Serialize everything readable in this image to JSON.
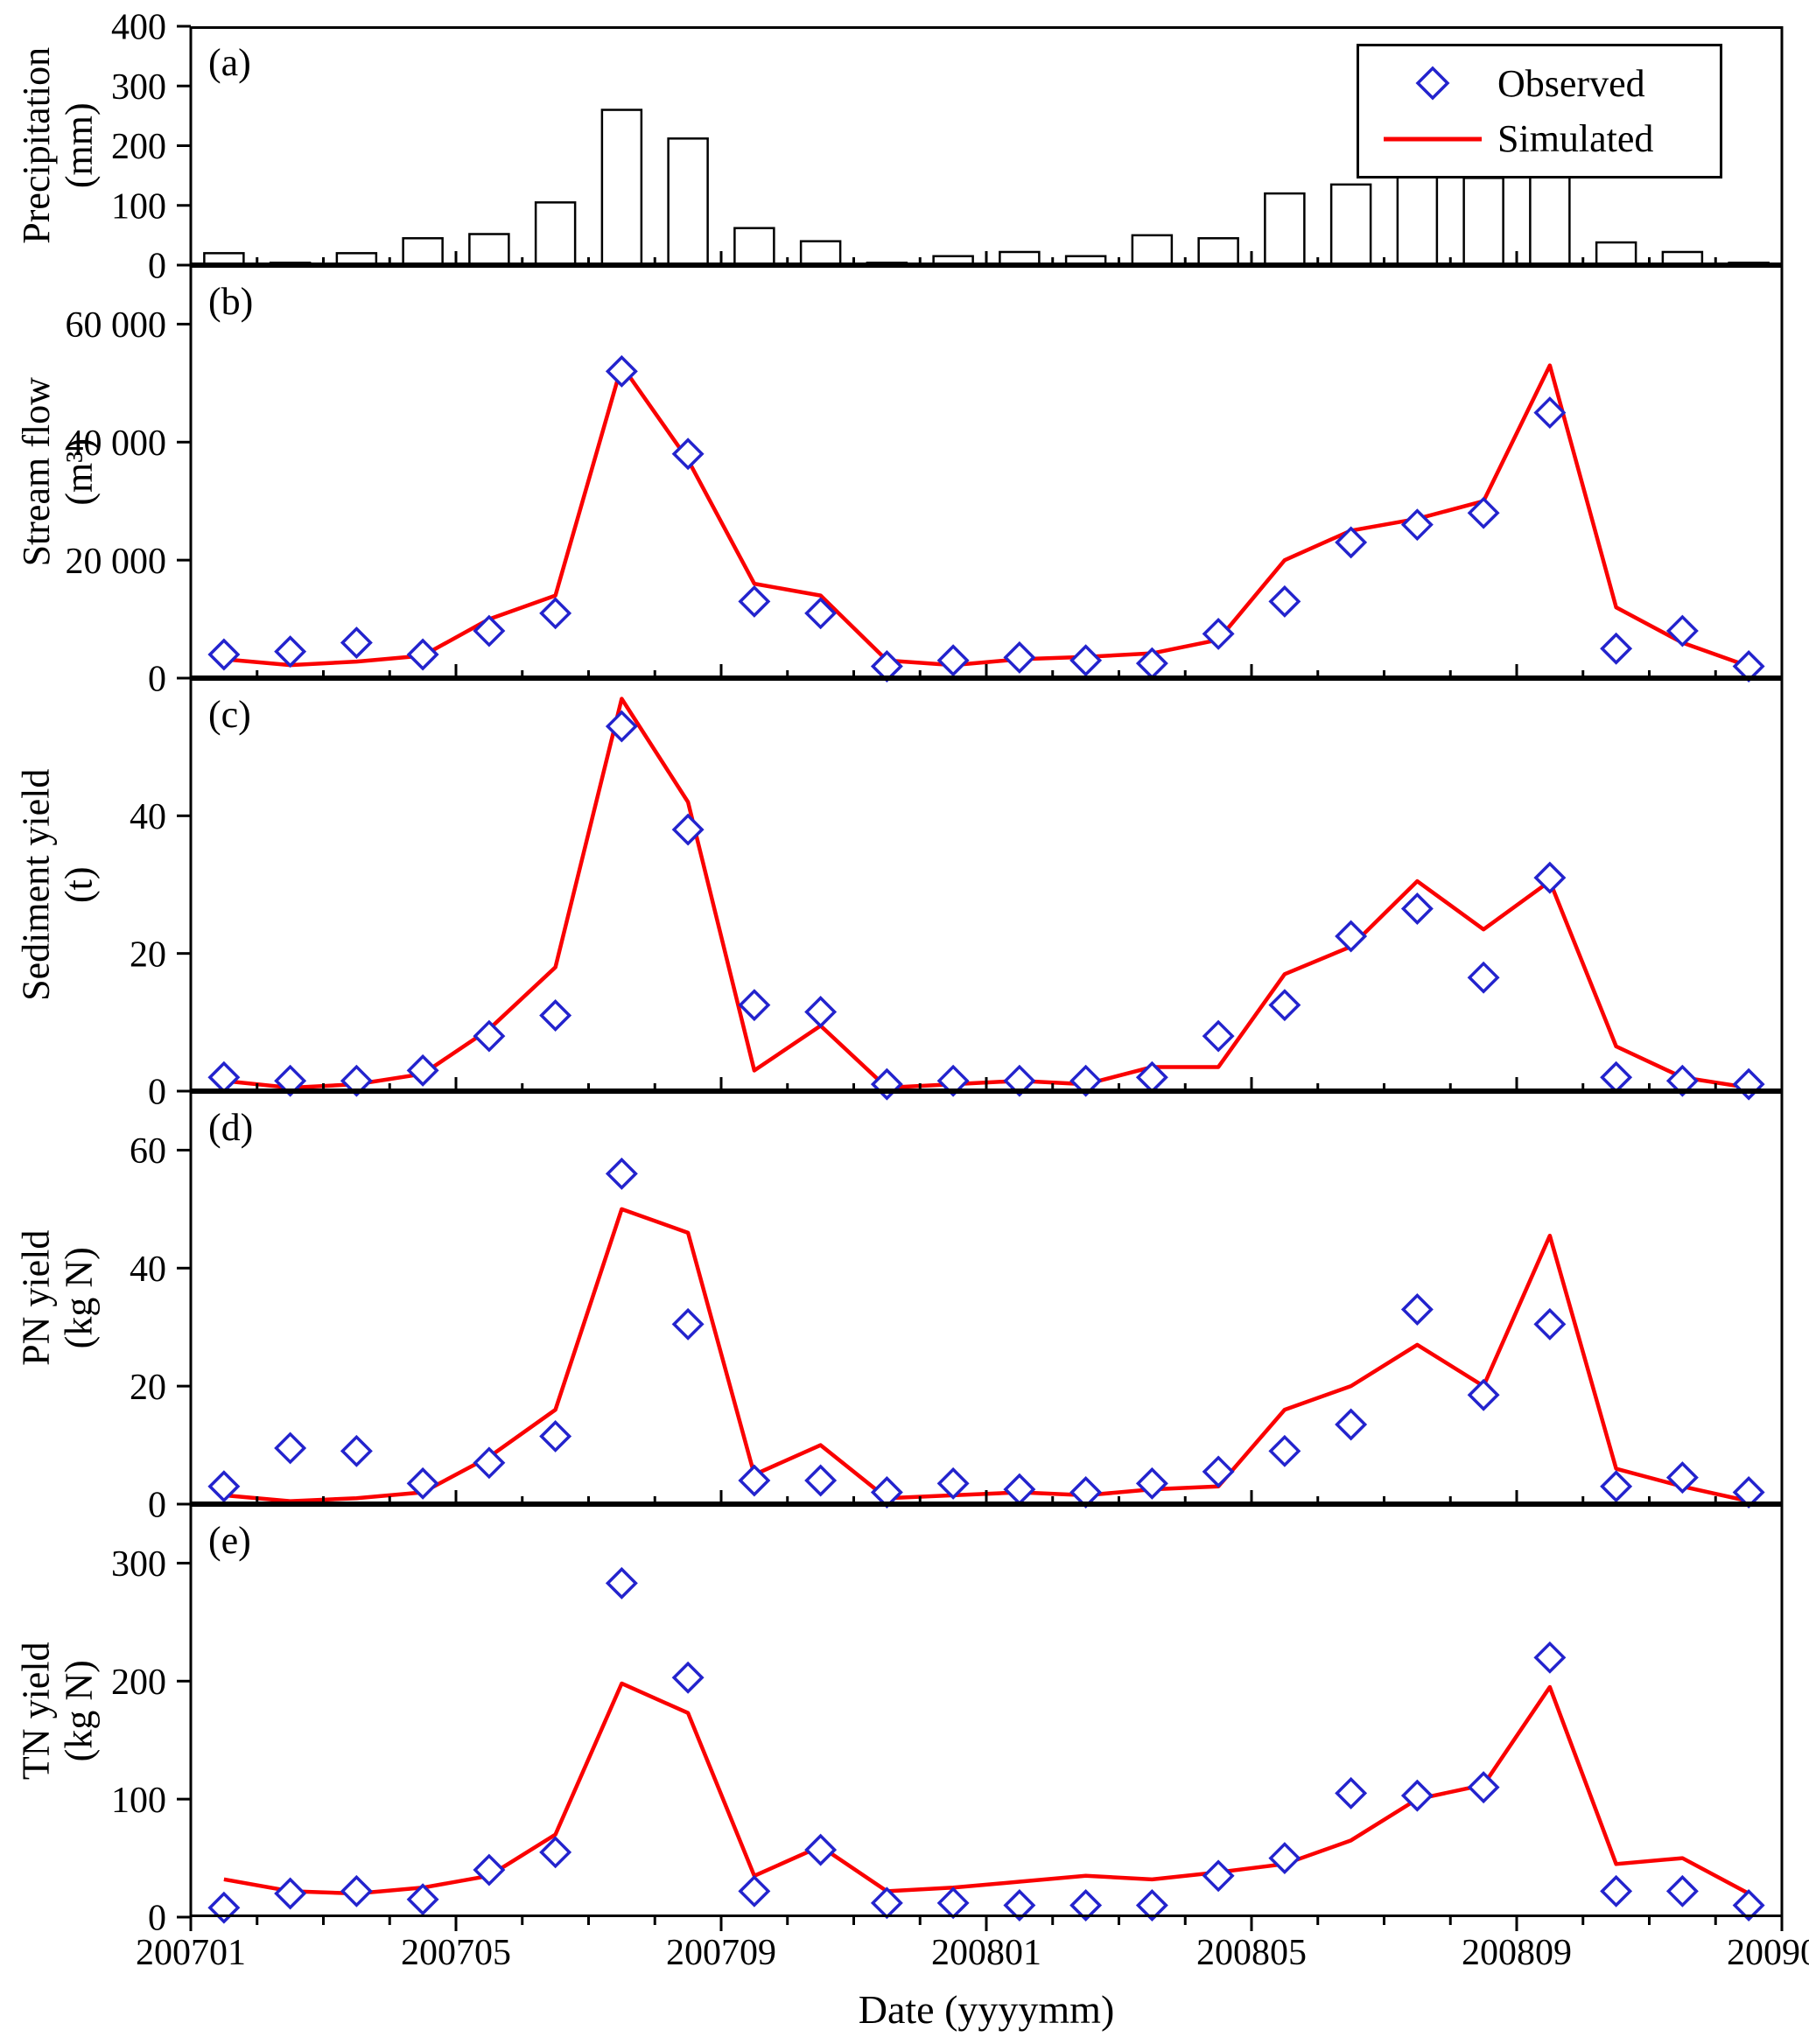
{
  "figure": {
    "xlabel": "Date (yyyymm)",
    "x_tick_labels": [
      "200701",
      "200705",
      "200709",
      "200801",
      "200805",
      "200809",
      "200901"
    ],
    "months": [
      "200701",
      "200702",
      "200703",
      "200704",
      "200705",
      "200706",
      "200707",
      "200708",
      "200709",
      "200710",
      "200711",
      "200712",
      "200801",
      "200802",
      "200803",
      "200804",
      "200805",
      "200806",
      "200807",
      "200808",
      "200809",
      "200810",
      "200811",
      "200812"
    ],
    "colors": {
      "observed": "#2323cd",
      "simulated": "#fa0000",
      "axis": "#000000",
      "bar_fill": "#ffffff"
    }
  },
  "legend": {
    "observed_label": "Observed",
    "simulated_label": "Simulated"
  },
  "chart_data": [
    {
      "panel_label": "(a)",
      "type": "bar",
      "ylabel_lines": [
        "Precipitation",
        "(mm)"
      ],
      "ylim": [
        0,
        400
      ],
      "yticks": [
        0,
        100,
        200,
        300,
        400
      ],
      "ytick_labels": [
        "0",
        "100",
        "200",
        "300",
        "400"
      ],
      "values": [
        20,
        4,
        20,
        45,
        52,
        105,
        260,
        212,
        62,
        40,
        4,
        15,
        22,
        15,
        50,
        45,
        120,
        135,
        148,
        146,
        196,
        38,
        22,
        4
      ]
    },
    {
      "panel_label": "(b)",
      "type": "line+scatter",
      "ylabel_lines": [
        "Stream flow",
        "(m³)"
      ],
      "ylim": [
        0,
        70000
      ],
      "yticks": [
        0,
        20000,
        40000,
        60000
      ],
      "ytick_labels": [
        "0",
        "20 000",
        "40 000",
        "60 000"
      ],
      "observed": [
        4000,
        4500,
        6000,
        4000,
        8000,
        11000,
        52000,
        38000,
        13000,
        11000,
        2000,
        3000,
        3500,
        3000,
        2500,
        7500,
        13000,
        23000,
        26000,
        28000,
        45000,
        5000,
        8000,
        2000
      ],
      "simulated": [
        3200,
        2200,
        2800,
        3800,
        10000,
        14000,
        53000,
        37000,
        16000,
        14000,
        3000,
        2200,
        3200,
        3600,
        4200,
        6500,
        20000,
        25000,
        27000,
        30000,
        53000,
        12000,
        6000,
        2000
      ]
    },
    {
      "panel_label": "(c)",
      "type": "line+scatter",
      "ylabel_lines": [
        "Sediment yield",
        "(t)"
      ],
      "ylim": [
        0,
        60
      ],
      "yticks": [
        0,
        20,
        40
      ],
      "ytick_labels": [
        "0",
        "20",
        "40"
      ],
      "observed": [
        2,
        1.5,
        1.5,
        3,
        8,
        11,
        53,
        38,
        12.5,
        11.5,
        1,
        1.5,
        1.5,
        1.5,
        2,
        8,
        12.5,
        22.5,
        26.5,
        16.5,
        31,
        2,
        1.5,
        1
      ],
      "simulated": [
        1.5,
        0.5,
        1,
        2.5,
        9,
        18,
        57,
        42,
        3,
        9.5,
        0.5,
        1,
        1.5,
        1,
        3.5,
        3.5,
        17,
        21,
        30.5,
        23.5,
        30.5,
        6.5,
        2,
        0.5
      ]
    },
    {
      "panel_label": "(d)",
      "type": "line+scatter",
      "ylabel_lines": [
        "PN yield",
        "(kg N)"
      ],
      "ylim": [
        0,
        70
      ],
      "yticks": [
        0,
        20,
        40,
        60
      ],
      "ytick_labels": [
        "0",
        "20",
        "40",
        "60"
      ],
      "observed": [
        3,
        9.5,
        9,
        3.5,
        7,
        11.5,
        56,
        30.5,
        4,
        4,
        2,
        3.5,
        2.5,
        2,
        3.5,
        5.5,
        9,
        13.5,
        33,
        18.5,
        30.5,
        3,
        4.5,
        2
      ],
      "simulated": [
        1.5,
        0.5,
        1,
        2,
        8,
        16,
        50,
        46,
        5,
        10,
        1,
        1.5,
        2,
        1.5,
        2.5,
        3,
        16,
        20,
        27,
        20,
        45.5,
        6,
        3,
        0.5
      ]
    },
    {
      "panel_label": "(e)",
      "type": "line+scatter",
      "ylabel_lines": [
        "TN yield",
        "(kg N)"
      ],
      "ylim": [
        0,
        350
      ],
      "yticks": [
        0,
        100,
        200,
        300
      ],
      "ytick_labels": [
        "0",
        "100",
        "200",
        "300"
      ],
      "observed": [
        8,
        20,
        22,
        15,
        40,
        55,
        283,
        203,
        22,
        57,
        12,
        12,
        10,
        10,
        10,
        35,
        50,
        105,
        103,
        110,
        220,
        22,
        22,
        10
      ],
      "simulated": [
        32,
        22,
        20,
        25,
        35,
        70,
        198,
        173,
        35,
        60,
        22,
        25,
        30,
        35,
        32,
        38,
        45,
        65,
        100,
        112,
        195,
        45,
        50,
        20
      ]
    }
  ]
}
